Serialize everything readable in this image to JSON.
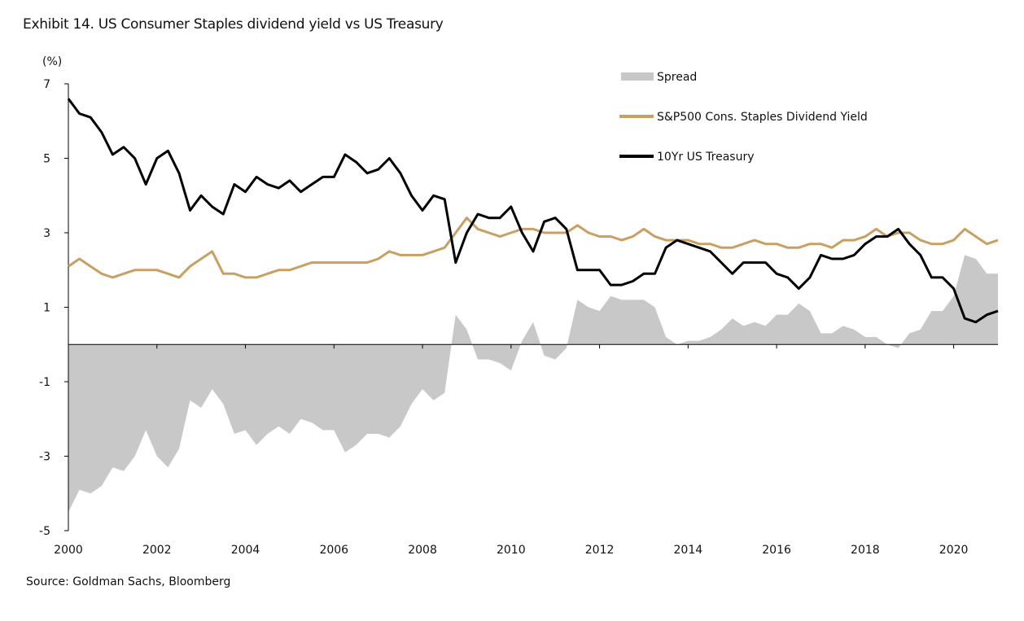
{
  "chart_data": {
    "type": "line",
    "title": "Exhibit 14. US Consumer Staples dividend yield vs US Treasury",
    "ylabel": "(%)",
    "xlabel": "",
    "ylim": [
      -5,
      7
    ],
    "xlim": [
      2000,
      2021
    ],
    "yticks": [
      7,
      5,
      3,
      1,
      -1,
      -3,
      -5
    ],
    "xticks": [
      2000,
      2002,
      2004,
      2006,
      2008,
      2010,
      2012,
      2014,
      2016,
      2018,
      2020
    ],
    "grid": false,
    "legend_position": "top-right",
    "x": [
      2000,
      2000.25,
      2000.5,
      2000.75,
      2001,
      2001.25,
      2001.5,
      2001.75,
      2002,
      2002.25,
      2002.5,
      2002.75,
      2003,
      2003.25,
      2003.5,
      2003.75,
      2004,
      2004.25,
      2004.5,
      2004.75,
      2005,
      2005.25,
      2005.5,
      2005.75,
      2006,
      2006.25,
      2006.5,
      2006.75,
      2007,
      2007.25,
      2007.5,
      2007.75,
      2008,
      2008.25,
      2008.5,
      2008.75,
      2009,
      2009.25,
      2009.5,
      2009.75,
      2010,
      2010.25,
      2010.5,
      2010.75,
      2011,
      2011.25,
      2011.5,
      2011.75,
      2012,
      2012.25,
      2012.5,
      2012.75,
      2013,
      2013.25,
      2013.5,
      2013.75,
      2014,
      2014.25,
      2014.5,
      2014.75,
      2015,
      2015.25,
      2015.5,
      2015.75,
      2016,
      2016.25,
      2016.5,
      2016.75,
      2017,
      2017.25,
      2017.5,
      2017.75,
      2018,
      2018.25,
      2018.5,
      2018.75,
      2019,
      2019.25,
      2019.5,
      2019.75,
      2020,
      2020.25,
      2020.5,
      2020.75,
      2021
    ],
    "series": [
      {
        "name": "Spread",
        "kind": "area",
        "color": "#c8c8c8",
        "formula": "S&P500 Cons. Staples Dividend Yield minus 10Yr US Treasury"
      },
      {
        "name": "S&P500 Cons. Staples Dividend Yield",
        "kind": "line",
        "color": "#c9a063",
        "values": [
          2.1,
          2.3,
          2.1,
          1.9,
          1.8,
          1.9,
          2.0,
          2.0,
          2.0,
          1.9,
          1.8,
          2.1,
          2.3,
          2.5,
          1.9,
          1.9,
          1.8,
          1.8,
          1.9,
          2.0,
          2.0,
          2.1,
          2.2,
          2.2,
          2.2,
          2.2,
          2.2,
          2.2,
          2.3,
          2.5,
          2.4,
          2.4,
          2.4,
          2.5,
          2.6,
          3.0,
          3.4,
          3.1,
          3.0,
          2.9,
          3.0,
          3.1,
          3.1,
          3.0,
          3.0,
          3.0,
          3.2,
          3.0,
          2.9,
          2.9,
          2.8,
          2.9,
          3.1,
          2.9,
          2.8,
          2.8,
          2.8,
          2.7,
          2.7,
          2.6,
          2.6,
          2.7,
          2.8,
          2.7,
          2.7,
          2.6,
          2.6,
          2.7,
          2.7,
          2.6,
          2.8,
          2.8,
          2.9,
          3.1,
          2.9,
          3.0,
          3.0,
          2.8,
          2.7,
          2.7,
          2.8,
          3.1,
          2.9,
          2.7,
          2.8
        ]
      },
      {
        "name": "10Yr US Treasury",
        "kind": "line",
        "color": "#000000",
        "values": [
          6.6,
          6.2,
          6.1,
          5.7,
          5.1,
          5.3,
          5.0,
          4.3,
          5.0,
          5.2,
          4.6,
          3.6,
          4.0,
          3.7,
          3.5,
          4.3,
          4.1,
          4.5,
          4.3,
          4.2,
          4.4,
          4.1,
          4.3,
          4.5,
          4.5,
          5.1,
          4.9,
          4.6,
          4.7,
          5.0,
          4.6,
          4.0,
          3.6,
          4.0,
          3.9,
          2.2,
          3.0,
          3.5,
          3.4,
          3.4,
          3.7,
          3.0,
          2.5,
          3.3,
          3.4,
          3.1,
          2.0,
          2.0,
          2.0,
          1.6,
          1.6,
          1.7,
          1.9,
          1.9,
          2.6,
          2.8,
          2.7,
          2.6,
          2.5,
          2.2,
          1.9,
          2.2,
          2.2,
          2.2,
          1.9,
          1.8,
          1.5,
          1.8,
          2.4,
          2.3,
          2.3,
          2.4,
          2.7,
          2.9,
          2.9,
          3.1,
          2.7,
          2.4,
          1.8,
          1.8,
          1.5,
          0.7,
          0.6,
          0.8,
          0.9
        ]
      }
    ]
  },
  "source": "Source: Goldman Sachs, Bloomberg"
}
